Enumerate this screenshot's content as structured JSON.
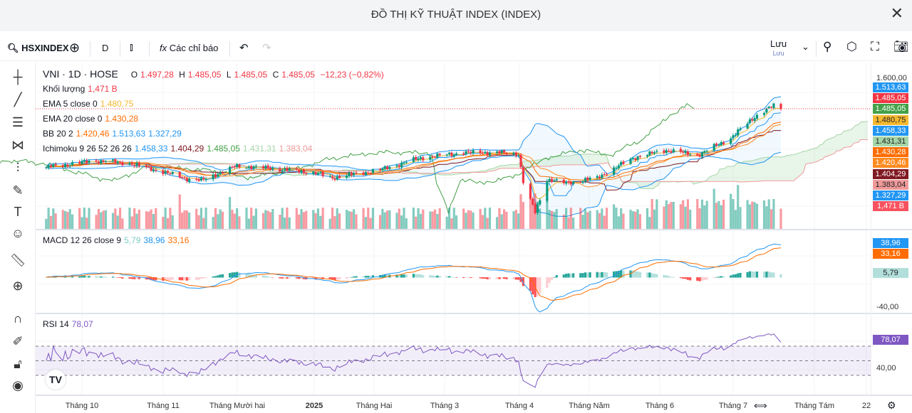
{
  "window": {
    "title": "ĐỒ THỊ KỸ THUẬT INDEX (INDEX)",
    "close": "✕"
  },
  "toolbar": {
    "symbol": "HSXINDEX",
    "interval": "D",
    "indicators": "Các chỉ báo",
    "save": "Lưu",
    "save_sub": "Lưu"
  },
  "legend": {
    "main": "VNI · 1D · HOSE",
    "o_l": "O",
    "o": "1.497,28",
    "h_l": "H",
    "h": "1.485,05",
    "l_l": "L",
    "l": "1.485,05",
    "c_l": "C",
    "c": "1.485,05",
    "chg": "−12,23 (−0,82%)",
    "vol_label": "Khối lượng",
    "vol": "1,471 B",
    "ema5_label": "EMA 5 close 0",
    "ema5": "1.480,75",
    "ema20_label": "EMA 20 close 0",
    "ema20": "1.430,28",
    "bb_label": "BB 20 2",
    "bb_basis": "1.420,46",
    "bb_upper": "1.513,63",
    "bb_lower": "1.327,29",
    "ichi_label": "Ichimoku 9 26 52 26 26",
    "ichi_tenkan": "1.458,33",
    "ichi_kijun": "1.404,29",
    "ichi_chikou": "1.485,05",
    "ichi_spanA": "1.431,31",
    "ichi_spanB": "1.383,04",
    "macd_label": "MACD 12 26 close 9",
    "macd_hist": "5,79",
    "macd": "38,96",
    "macd_signal": "33,16",
    "rsi_label": "RSI 14",
    "rsi": "78,07"
  },
  "price_axis": {
    "top": "1.600,00",
    "labels": [
      {
        "text": "1.513,63",
        "color": "#2196f3"
      },
      {
        "text": "1.485,05",
        "color": "#f23645"
      },
      {
        "text": "1.485,05",
        "color": "#43a047"
      },
      {
        "text": "1.480,75",
        "color": "#f5b92f",
        "dark": true
      },
      {
        "text": "1.458,33",
        "color": "#2196f3"
      },
      {
        "text": "1.431,31",
        "color": "#a5d6a7",
        "dark": true
      },
      {
        "text": "1.430,28",
        "color": "#ff6d00"
      },
      {
        "text": "1.420,46",
        "color": "#ff8a1f"
      },
      {
        "text": "1.404,29",
        "color": "#801922"
      },
      {
        "text": "1.383,04",
        "color": "#ef9a9a",
        "dark": true
      },
      {
        "text": "1.327,29",
        "color": "#2196f3"
      },
      {
        "text": "1,471 B",
        "color": "#f7525f"
      }
    ]
  },
  "macd_axis": {
    "labels": [
      {
        "text": "38,96",
        "color": "#2196f3"
      },
      {
        "text": "33,16",
        "color": "#ff6d00"
      },
      {
        "text": "5,79",
        "color": "#b2dfdb"
      }
    ],
    "tick": "-40,00"
  },
  "rsi_axis": {
    "label": {
      "text": "78,07",
      "color": "#7e57c2"
    },
    "tick": "40,00"
  },
  "time_axis": [
    "Tháng 10",
    "Tháng 11",
    "Tháng Mười hai",
    "2025",
    "Tháng Hai",
    "Tháng 3",
    "Tháng 4",
    "Tháng Năm",
    "Tháng 6",
    "Tháng 7",
    "Tháng Tám",
    "22"
  ],
  "colors": {
    "up": "#089981",
    "down": "#f23645",
    "ema5": "#f5b92f",
    "ema20": "#ff6d00",
    "bb": "#2196f3",
    "tenkan": "#2196f3",
    "kijun": "#801922",
    "chikou": "#43a047",
    "spanA": "#a5d6a7",
    "spanB": "#ef9a9a",
    "rsi": "#7e57c2"
  },
  "chart_data": {
    "type": "candlestick",
    "symbol": "VNI",
    "interval": "1D",
    "ylim": [
      1040,
      1600
    ],
    "approx_close_path": [
      [
        "2024-09-16",
        1265
      ],
      [
        "2024-10-07",
        1290
      ],
      [
        "2024-10-21",
        1280
      ],
      [
        "2024-11-05",
        1245
      ],
      [
        "2024-11-15",
        1220
      ],
      [
        "2024-11-20",
        1215
      ],
      [
        "2024-12-05",
        1270
      ],
      [
        "2024-12-20",
        1260
      ],
      [
        "2025-01-06",
        1245
      ],
      [
        "2025-01-14",
        1225
      ],
      [
        "2025-02-03",
        1255
      ],
      [
        "2025-02-20",
        1300
      ],
      [
        "2025-03-10",
        1320
      ],
      [
        "2025-03-25",
        1320
      ],
      [
        "2025-04-02",
        1315
      ],
      [
        "2025-04-04",
        1210
      ],
      [
        "2025-04-09",
        1095
      ],
      [
        "2025-04-14",
        1220
      ],
      [
        "2025-04-22",
        1205
      ],
      [
        "2025-05-05",
        1225
      ],
      [
        "2025-05-20",
        1300
      ],
      [
        "2025-06-03",
        1330
      ],
      [
        "2025-06-16",
        1310
      ],
      [
        "2025-06-30",
        1375
      ],
      [
        "2025-07-10",
        1455
      ],
      [
        "2025-07-18",
        1497
      ],
      [
        "2025-07-21",
        1485
      ]
    ],
    "rsi_bands": [
      70,
      50,
      30
    ]
  }
}
